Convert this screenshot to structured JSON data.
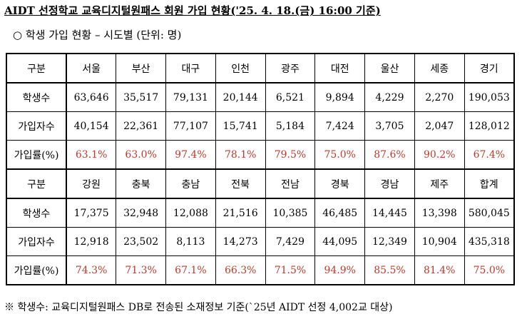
{
  "header": {
    "title": "AIDT 선정학교 교육디지털원패스 회원 가입 현황('25. 4. 18.(금) 16:00 기준)",
    "subtitle": "○ 학생 가입 현황 – 시도별 (단위: 명)"
  },
  "table": {
    "rows": [
      [
        "구분",
        "서울",
        "부산",
        "대구",
        "인천",
        "광주",
        "대전",
        "울산",
        "세종",
        "경기"
      ],
      [
        "학생수",
        "63,646",
        "35,517",
        "79,131",
        "20,144",
        "6,521",
        "9,894",
        "4,229",
        "2,270",
        "190,053"
      ],
      [
        "가입자수",
        "40,154",
        "22,361",
        "77,107",
        "15,741",
        "5,184",
        "7,424",
        "3,705",
        "2,047",
        "128,012"
      ],
      [
        "가입률(%)",
        "63.1%",
        "63.0%",
        "97.4%",
        "78.1%",
        "79.5%",
        "75.0%",
        "87.6%",
        "90.2%",
        "67.4%"
      ],
      [
        "구분",
        "강원",
        "충북",
        "충남",
        "전북",
        "전남",
        "경북",
        "경남",
        "제주",
        "합계"
      ],
      [
        "학생수",
        "17,375",
        "32,948",
        "12,088",
        "21,516",
        "10,385",
        "46,485",
        "14,445",
        "13,398",
        "580,045"
      ],
      [
        "가입자수",
        "12,918",
        "23,502",
        "8,113",
        "14,273",
        "7,429",
        "44,095",
        "12,349",
        "10,904",
        "435,318"
      ],
      [
        "가입률(%)",
        "74.3%",
        "71.3%",
        "67.1%",
        "66.3%",
        "71.5%",
        "94.9%",
        "85.5%",
        "81.4%",
        "75.0%"
      ]
    ]
  },
  "footnote": "※ 학생수: 교육디지털원패스 DB로 전송된 소재정보 기준(`25년 AIDT 선정 4,002교 대상)"
}
